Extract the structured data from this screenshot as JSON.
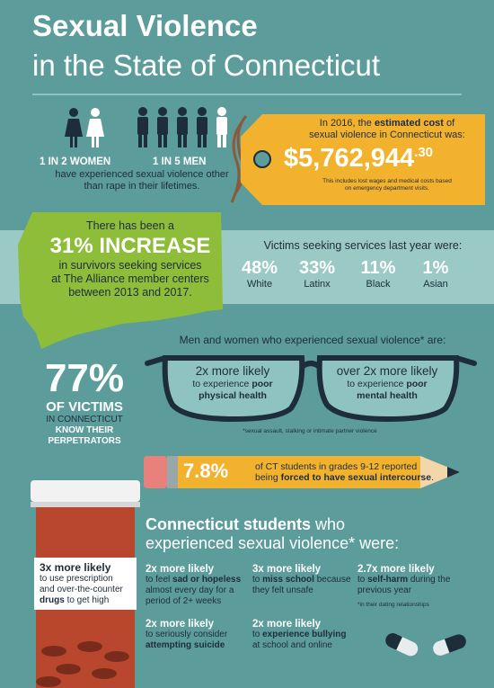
{
  "title": {
    "line1": "Sexual Violence",
    "line2": "in the State of Connecticut"
  },
  "people": {
    "women": "1 IN 2 WOMEN",
    "men": "1 IN 5 MEN",
    "desc1": "have experienced sexual violence other",
    "desc2": "than rape in their lifetimes."
  },
  "cost": {
    "intro": "In 2016, the",
    "bold": "estimated cost",
    "intro2": "of",
    "line2": "sexual violence in Connecticut was:",
    "amount": "$5,762,944",
    "cents": ".30",
    "note1": "This includes lost wages and medical costs based",
    "note2": "on emergency department visits."
  },
  "increase": {
    "line1": "There has been a",
    "big": "31% INCREASE",
    "line3": "in survivors seeking services",
    "line4": "at The Alliance member centers",
    "line5": "between 2013 and 2017."
  },
  "victims": {
    "heading": "Victims seeking services last year were:",
    "items": [
      {
        "pct": "48%",
        "label": "White"
      },
      {
        "pct": "33%",
        "label": "Latinx"
      },
      {
        "pct": "11%",
        "label": "Black"
      },
      {
        "pct": "1%",
        "label": "Asian"
      }
    ]
  },
  "glasses": {
    "heading": "Men and women who experienced sexual violence* are:",
    "left1": "2x more likely",
    "left2": "to experience",
    "left2b": "poor",
    "left3": "physical health",
    "right1": "over 2x more likely",
    "right2": "to experience",
    "right2b": "poor",
    "right3": "mental health",
    "note": "*sexual assault, stalking or intimate partner violence"
  },
  "victims77": {
    "big": "77%",
    "line2": "OF VICTIMS",
    "line3": "IN CONNECTICUT",
    "line4": "KNOW THEIR",
    "line5": "PERPETRATORS"
  },
  "pencil": {
    "pct": "7.8%",
    "line1": "of CT students in grades 9-12 reported",
    "line2a": "being",
    "line2b": "forced to have sexual intercourse",
    "line2c": "."
  },
  "pills": {
    "bold": "3x more likely",
    "line2": "to use prescription",
    "line3": "and over-the-counter",
    "line4b": "drugs",
    "line4": "to get high"
  },
  "students": {
    "heading_bold": "Connecticut students",
    "heading_rest": "who",
    "heading2": "experienced sexual violence* were:",
    "s1h": "2x more likely",
    "s1a": "to feel",
    "s1b": "sad or hopeless",
    "s1c": "almost every day for a",
    "s1d": "period of 2+ weeks",
    "s2h": "3x more likely",
    "s2a": "to",
    "s2b": "miss school",
    "s2c": "because",
    "s2d": "they felt unsafe",
    "s3h": "2.7x more likely",
    "s3a": "to",
    "s3b": "self-harm",
    "s3c": "during the",
    "s3d": "previous year",
    "s4h": "2x more likely",
    "s4a": "to seriously consider",
    "s4b": "attempting suicide",
    "s5h": "2x more likely",
    "s5a": "to",
    "s5b": "experience bullying",
    "s5c": "at school and online",
    "note": "*in their dating relationships"
  },
  "colors": {
    "background": "#5c9c9b",
    "band": "#9ac9c6",
    "accent_yellow": "#f2b22d",
    "green": "#8ebd3a",
    "navy": "#1e2d3a",
    "bottle": "#b8472d"
  }
}
